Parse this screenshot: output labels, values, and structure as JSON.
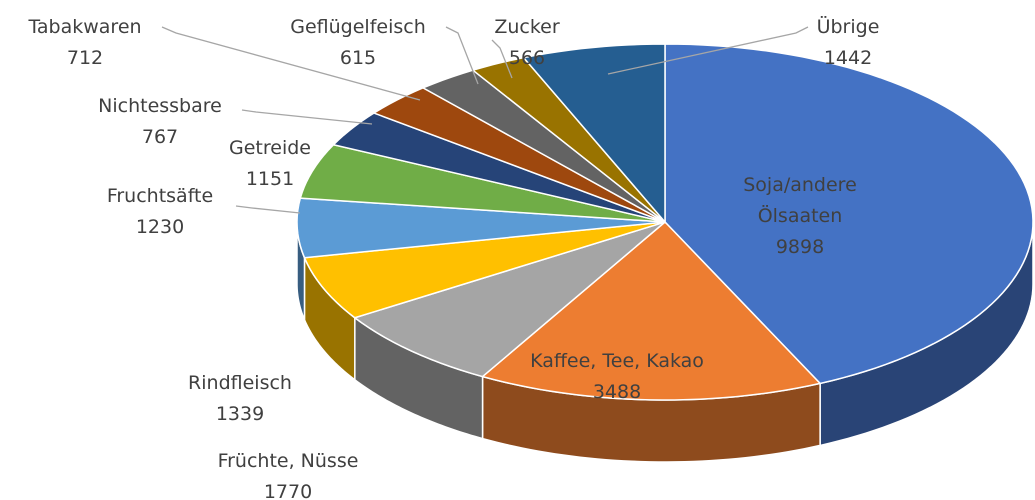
{
  "chart_data": {
    "type": "pie",
    "categories": [
      "Soja/andere Ölsaaten",
      "Kaffee, Tee, Kakao",
      "Früchte, Nüsse",
      "Rindfleisch",
      "Fruchtsäfte",
      "Getreide",
      "Nichtessbare",
      "Tabakwaren",
      "Geflügelfeisch",
      "Zucker",
      "Übrige"
    ],
    "values": [
      9898,
      3488,
      1770,
      1339,
      1230,
      1151,
      767,
      712,
      615,
      566,
      1442
    ],
    "colors": [
      "#4472c4",
      "#ed7d31",
      "#a5a5a5",
      "#ffc000",
      "#5b9bd5",
      "#70ad47",
      "#264478",
      "#9e480e",
      "#636363",
      "#997300",
      "#255e91"
    ]
  }
}
